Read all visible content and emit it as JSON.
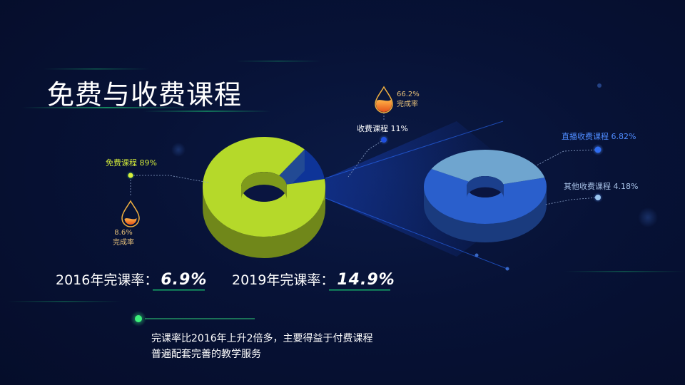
{
  "title": "免费与收费课程",
  "chart_data": [
    {
      "type": "pie",
      "name": "",
      "slices": [
        {
          "label": "免费课程",
          "value": 89,
          "display": "免费课程 89%",
          "color": "#b5d92a"
        },
        {
          "label": "收费课程",
          "value": 11,
          "display": "收费课程 11%",
          "color": "#0f3aa8"
        }
      ],
      "completion": {
        "value": "8.6%",
        "label": "完成率"
      },
      "paid_completion": {
        "value": "66.2%",
        "label": "完成率"
      }
    },
    {
      "type": "pie",
      "name": "",
      "slices": [
        {
          "label": "直播收费课程",
          "value": 6.82,
          "display": "直播收费课程 6.82%",
          "color": "#2a5fcc"
        },
        {
          "label": "其他收费课程",
          "value": 4.18,
          "display": "其他收费课程 4.18%",
          "color": "#6fa5cf"
        }
      ]
    }
  ],
  "stats": {
    "y2016": {
      "label": "2016年完课率：",
      "value": "6.9%"
    },
    "y2019": {
      "label": "2019年完课率：",
      "value": "14.9%"
    }
  },
  "note": {
    "line1": "完课率比2016年上升2倍多，主要得益于付费课程",
    "line2": "普遍配套完善的教学服务"
  },
  "colors": {
    "accent_green": "#17b36b",
    "free": "#b5d92a",
    "paid": "#0f3aa8",
    "live": "#2a5fcc",
    "other": "#6fa5cf",
    "gold": "#e6c07a"
  }
}
